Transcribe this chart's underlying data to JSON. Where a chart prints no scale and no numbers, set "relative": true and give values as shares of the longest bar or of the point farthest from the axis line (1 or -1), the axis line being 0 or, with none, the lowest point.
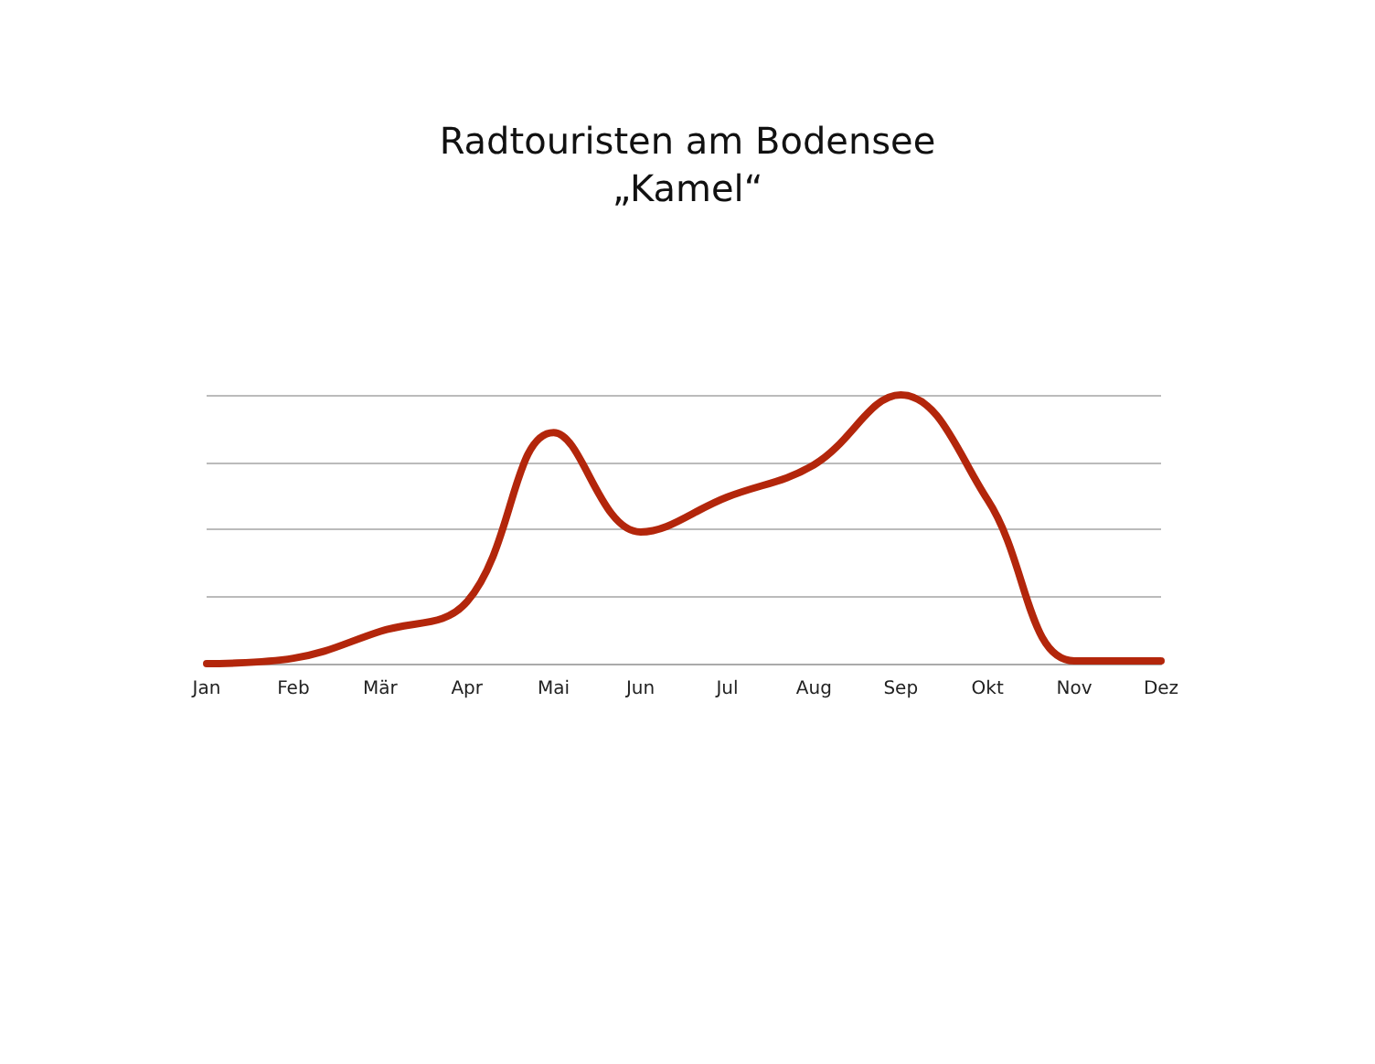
{
  "chart_data": {
    "type": "line",
    "title": "Radtouristen am Bodensee",
    "subtitle": "„Kamel“",
    "relative": true,
    "categories": [
      "Jan",
      "Feb",
      "Mär",
      "Apr",
      "Mai",
      "Jun",
      "Jul",
      "Aug",
      "Sep",
      "Okt",
      "Nov",
      "Dez"
    ],
    "series": [
      {
        "color": "#b3260b",
        "values": [
          0,
          0.02,
          0.12,
          0.23,
          0.86,
          0.49,
          0.62,
          0.74,
          1,
          0.61,
          0.01,
          0.01
        ]
      }
    ],
    "grid": "y",
    "marker": "none",
    "line_style": "solid"
  }
}
